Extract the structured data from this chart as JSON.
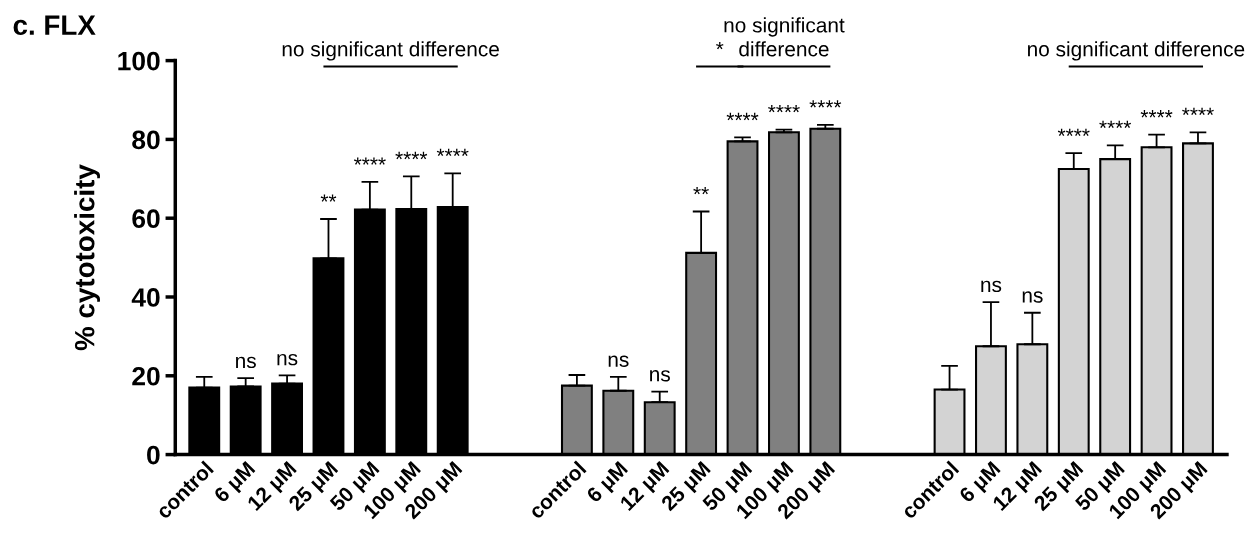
{
  "chart_data": {
    "type": "bar",
    "title": "c. FLX",
    "ylabel": "% cytotoxicity",
    "categories": [
      "control",
      "6 μM",
      "12 μM",
      "25 μM",
      "50 μM",
      "100 μM",
      "200 μM",
      null,
      null,
      "control",
      "6 μM",
      "12 μM",
      "25 μM",
      "50 μM",
      "100 μM",
      "200 μM",
      null,
      null,
      "control",
      "6 μM",
      "12 μM",
      "25 μM",
      "50 μM",
      "100 μM",
      "200 μM"
    ],
    "values": [
      17,
      17.3,
      18,
      49.8,
      62.2,
      62.3,
      62.8,
      null,
      null,
      17.5,
      16.2,
      13.3,
      51.2,
      79.5,
      81.8,
      82.7,
      null,
      null,
      16.5,
      27.5,
      28,
      72.5,
      75,
      78,
      79
    ],
    "errors": [
      [
        17,
        19.7
      ],
      [
        17.3,
        19.4
      ],
      [
        18,
        20.1
      ],
      [
        49.8,
        59.8
      ],
      [
        62.2,
        69.2
      ],
      [
        62.3,
        70.6
      ],
      [
        62.8,
        71.4
      ],
      null,
      null,
      [
        17.5,
        20.2
      ],
      [
        16.2,
        19.7
      ],
      [
        13.3,
        16
      ],
      [
        51.2,
        61.7
      ],
      [
        79.5,
        80.5
      ],
      [
        81.8,
        82.5
      ],
      [
        82.7,
        83.7
      ],
      null,
      null,
      [
        16.5,
        22.5
      ],
      [
        27.5,
        38.7
      ],
      [
        28,
        36
      ],
      [
        72.5,
        76.5
      ],
      [
        75,
        78.5
      ],
      [
        78,
        81.2
      ],
      [
        79,
        81.8
      ]
    ],
    "colors": [
      "#000000",
      "#000000",
      "#000000",
      "#000000",
      "#000000",
      "#000000",
      "#000000",
      null,
      null,
      "#808080",
      "#808080",
      "#808080",
      "#808080",
      "#808080",
      "#808080",
      "#808080",
      null,
      null,
      "#d3d3d3",
      "#d3d3d3",
      "#d3d3d3",
      "#d3d3d3",
      "#d3d3d3",
      "#d3d3d3",
      "#d3d3d3"
    ],
    "value_labels": [
      null,
      "ns",
      "ns",
      "**",
      "****",
      "****",
      "****",
      null,
      null,
      null,
      "ns",
      "ns",
      "**",
      "****",
      "****",
      "****",
      null,
      null,
      null,
      "ns",
      "ns",
      "****",
      "****",
      "****",
      "****"
    ],
    "annotations": [
      "no significant difference",
      "*",
      "no significant\ndifference",
      "no significant difference"
    ],
    "ylim": [
      0,
      100
    ],
    "yticks": [
      0,
      20,
      40,
      60,
      80,
      100
    ],
    "grid": false,
    "legend": false
  }
}
